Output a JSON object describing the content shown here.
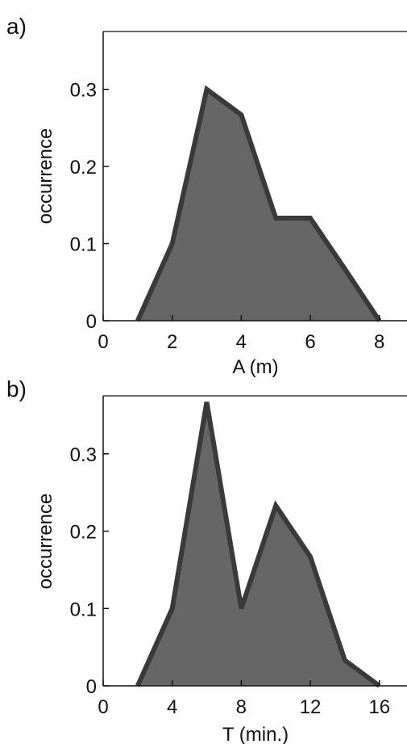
{
  "chart_data": [
    {
      "type": "area",
      "panel_label": "a)",
      "xlabel": "A (m)",
      "ylabel": "occurrence",
      "xlim": [
        0,
        8.8
      ],
      "ylim": [
        0,
        0.375
      ],
      "xticks": [
        0,
        2,
        4,
        6,
        8
      ],
      "yticks": [
        0,
        0.1,
        0.2,
        0.3
      ],
      "x": [
        1,
        2,
        3,
        4,
        5,
        6,
        7,
        8
      ],
      "y": [
        0,
        0.1,
        0.3,
        0.267,
        0.133,
        0.133,
        0.067,
        0
      ],
      "fill_color": "#666666",
      "line_color": "#3a3a3a",
      "grid": false
    },
    {
      "type": "area",
      "panel_label": "b)",
      "xlabel": "T (min.)",
      "ylabel": "occurrence",
      "xlim": [
        0,
        17.6
      ],
      "ylim": [
        0,
        0.375
      ],
      "xticks": [
        0,
        4,
        8,
        12,
        16
      ],
      "yticks": [
        0,
        0.1,
        0.2,
        0.3
      ],
      "x": [
        2,
        4,
        6,
        8,
        10,
        12,
        14,
        16
      ],
      "y": [
        0,
        0.1,
        0.367,
        0.1,
        0.233,
        0.167,
        0.033,
        0
      ],
      "fill_color": "#666666",
      "line_color": "#3a3a3a",
      "grid": false
    }
  ]
}
